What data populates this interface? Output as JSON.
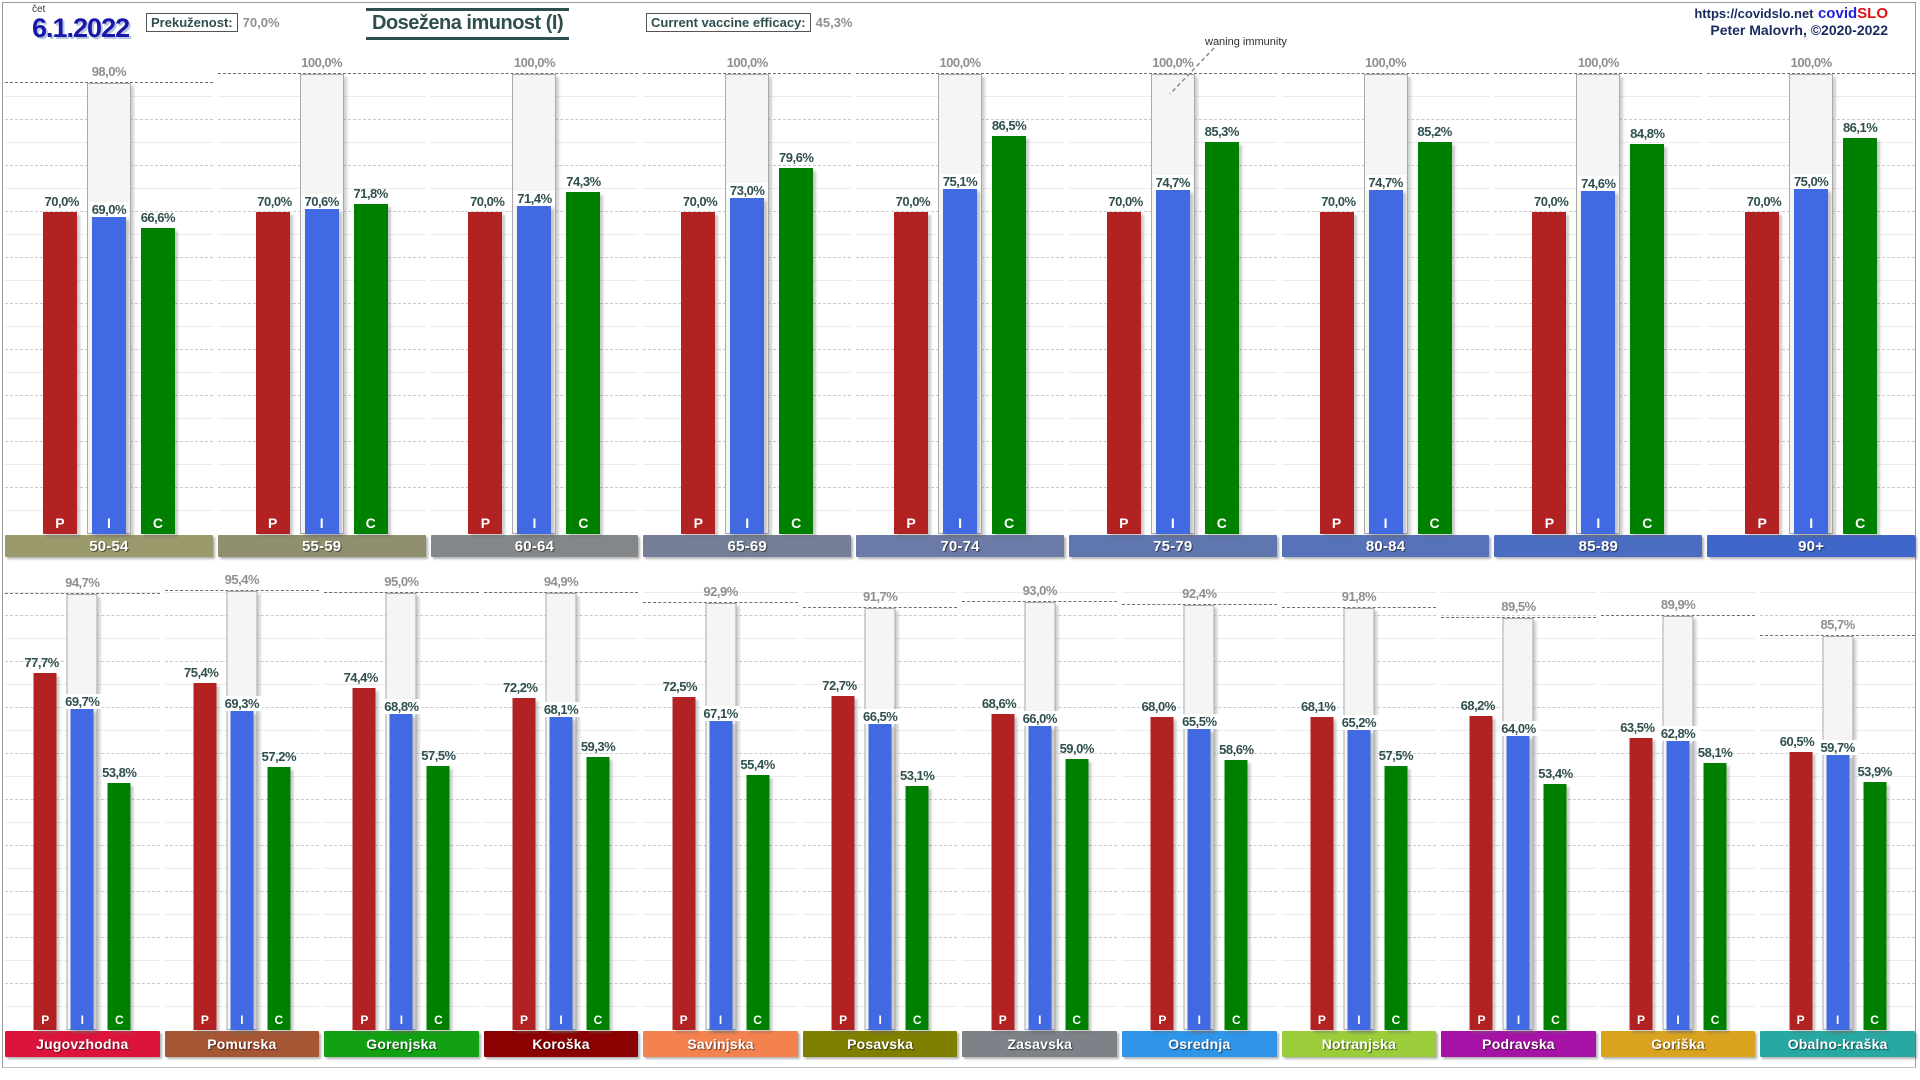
{
  "header": {
    "weekday": "čet",
    "date": "6.1.2022",
    "prekuzenost_label": "Prekuženost:",
    "prekuzenost_value": "70,0%",
    "title": "Dosežena imunost (I)",
    "efficacy_label": "Current vaccine efficacy:",
    "efficacy_value": "45,3%",
    "site_url": "https://covidslo.net",
    "logo_covid": "covid",
    "logo_slo": "SLO",
    "credit": "Peter Malovrh, ©2020-2022"
  },
  "annotation": {
    "text": "waning immunity"
  },
  "colors": {
    "bar_p": "#b22222",
    "bar_i": "#4169e1",
    "bar_c": "#008000",
    "bar_max_fill": "#f5f5f4",
    "value_label": "#2f4f4f",
    "max_label": "#8f8f8f"
  },
  "chart_data": {
    "type": "bar",
    "unit": "%",
    "value_format": "comma-decimal",
    "series_letters": [
      "P",
      "I",
      "C"
    ],
    "ylim": [
      0,
      100
    ],
    "grid": "dashed horizontal every 10%",
    "rows": [
      {
        "name": "age-groups",
        "charts": [
          {
            "label": "50-54",
            "band_color": "#9b9a6c",
            "max": 98.0,
            "p": 70.0,
            "i": 69.0,
            "c": 66.6
          },
          {
            "label": "55-59",
            "band_color": "#90906f",
            "max": 100.0,
            "p": 70.0,
            "i": 70.6,
            "c": 71.8
          },
          {
            "label": "60-64",
            "band_color": "#848789",
            "max": 100.0,
            "p": 70.0,
            "i": 71.4,
            "c": 74.3
          },
          {
            "label": "65-69",
            "band_color": "#747f97",
            "max": 100.0,
            "p": 70.0,
            "i": 73.0,
            "c": 79.6
          },
          {
            "label": "70-74",
            "band_color": "#6b7aa6",
            "max": 100.0,
            "p": 70.0,
            "i": 75.1,
            "c": 86.5
          },
          {
            "label": "75-79",
            "band_color": "#6076af",
            "max": 100.0,
            "p": 70.0,
            "i": 74.7,
            "c": 85.3
          },
          {
            "label": "80-84",
            "band_color": "#5672b8",
            "max": 100.0,
            "p": 70.0,
            "i": 74.7,
            "c": 85.2
          },
          {
            "label": "85-89",
            "band_color": "#4b6dc1",
            "max": 100.0,
            "p": 70.0,
            "i": 74.6,
            "c": 84.8
          },
          {
            "label": "90+",
            "band_color": "#3f67ca",
            "max": 100.0,
            "p": 70.0,
            "i": 75.0,
            "c": 86.1
          }
        ]
      },
      {
        "name": "regions",
        "charts": [
          {
            "label": "Jugovzhodna",
            "band_color": "#dc143c",
            "max": 94.7,
            "p": 77.7,
            "i": 69.7,
            "c": 53.8
          },
          {
            "label": "Pomurska",
            "band_color": "#a55634",
            "max": 95.4,
            "p": 75.4,
            "i": 69.3,
            "c": 57.2
          },
          {
            "label": "Gorenjska",
            "band_color": "#13a113",
            "max": 95.0,
            "p": 74.4,
            "i": 68.8,
            "c": 57.5
          },
          {
            "label": "Koroška",
            "band_color": "#8b0000",
            "max": 94.9,
            "p": 72.2,
            "i": 68.1,
            "c": 59.3
          },
          {
            "label": "Savinjska",
            "band_color": "#f4824e",
            "max": 92.9,
            "p": 72.5,
            "i": 67.1,
            "c": 55.4
          },
          {
            "label": "Posavska",
            "band_color": "#7f7f00",
            "max": 91.7,
            "p": 72.7,
            "i": 66.5,
            "c": 53.1
          },
          {
            "label": "Zasavska",
            "band_color": "#7c8287",
            "max": 93.0,
            "p": 68.6,
            "i": 66.0,
            "c": 59.0
          },
          {
            "label": "Osrednja",
            "band_color": "#2e95e8",
            "max": 92.4,
            "p": 68.0,
            "i": 65.5,
            "c": 58.6
          },
          {
            "label": "Notranjska",
            "band_color": "#9bcd3a",
            "max": 91.8,
            "p": 68.1,
            "i": 65.2,
            "c": 57.5
          },
          {
            "label": "Podravska",
            "band_color": "#a512a5",
            "max": 89.5,
            "p": 68.2,
            "i": 64.0,
            "c": 53.4
          },
          {
            "label": "Goriška",
            "band_color": "#d9a31f",
            "max": 89.9,
            "p": 63.5,
            "i": 62.8,
            "c": 58.1
          },
          {
            "label": "Obalno-kraška",
            "band_color": "#28a8a2",
            "max": 85.7,
            "p": 60.5,
            "i": 59.7,
            "c": 53.9
          }
        ]
      }
    ]
  }
}
